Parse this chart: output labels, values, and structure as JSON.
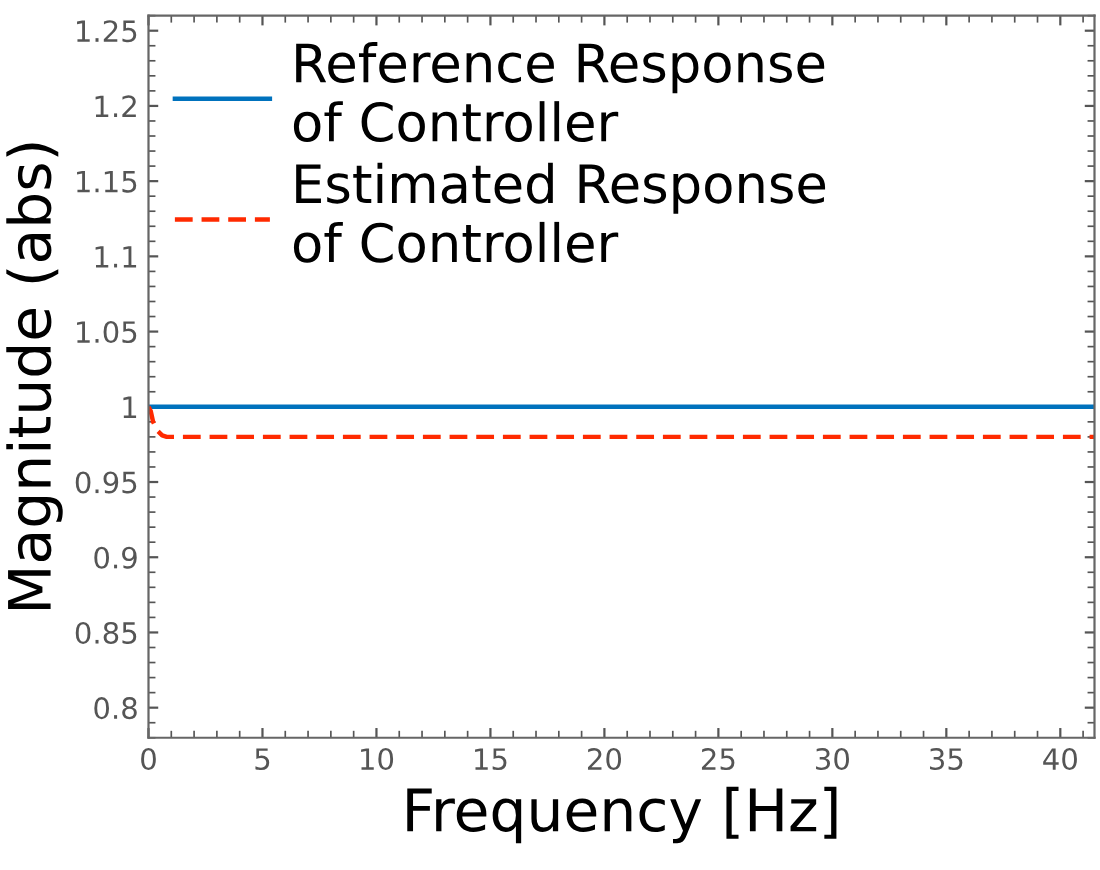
{
  "chart_data": {
    "type": "line",
    "xlabel": "Frequency [Hz]",
    "ylabel": "Magnitude (abs)",
    "xlim": [
      0,
      41.5
    ],
    "ylim": [
      0.78,
      1.26
    ],
    "xticks": [
      0,
      5,
      10,
      15,
      20,
      25,
      30,
      35,
      40
    ],
    "yticks": [
      0.8,
      0.85,
      0.9,
      0.95,
      1,
      1.05,
      1.1,
      1.15,
      1.2,
      1.25
    ],
    "grid": false,
    "legend": "top left",
    "marker": "none",
    "series": [
      {
        "name": "Reference Response\nof Controller",
        "color": "#0072bd",
        "line_style": "solid",
        "x": [
          0,
          41.5
        ],
        "values": [
          1,
          1
        ]
      },
      {
        "name": "Estimated Response\nof Controller",
        "color": "#ff2a00",
        "line_style": "dashed",
        "x": [
          0,
          0.1,
          0.2,
          0.4,
          0.6,
          0.8,
          1.0,
          41.5
        ],
        "values": [
          1,
          0.997,
          0.99,
          0.984,
          0.981,
          0.98,
          0.98,
          0.98
        ]
      }
    ]
  }
}
